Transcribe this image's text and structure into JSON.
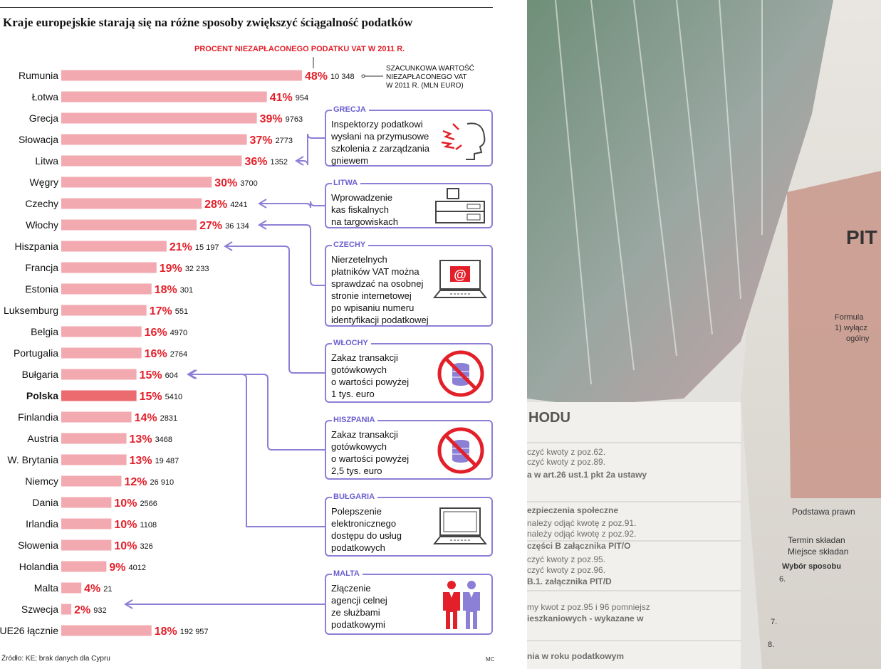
{
  "chart_data": {
    "type": "bar",
    "orientation": "horizontal",
    "title": "Kraje europejskie starają się na różne sposoby zwiększyć ściągalność podatków",
    "subtitle": "PROCENT NIEZAPŁACONEGO PODATKU VAT W 2011 R.",
    "value_annotation": "SZACUNKOWA WARTOŚĆ\nNIEZAPŁACONEGO VAT\nW 2011 R. (MLN EURO)",
    "xlim": [
      0,
      50
    ],
    "categories": [
      "Rumunia",
      "Łotwa",
      "Grecja",
      "Słowacja",
      "Litwa",
      "Węgry",
      "Czechy",
      "Włochy",
      "Hiszpania",
      "Francja",
      "Estonia",
      "Luksemburg",
      "Belgia",
      "Portugalia",
      "Bułgaria",
      "Polska",
      "Finlandia",
      "Austria",
      "W. Brytania",
      "Niemcy",
      "Dania",
      "Irlandia",
      "Słowenia",
      "Holandia",
      "Malta",
      "Szwecja",
      "UE26 łącznie"
    ],
    "series": [
      {
        "name": "Procent niezapłaconego VAT",
        "values": [
          48,
          41,
          39,
          37,
          36,
          30,
          28,
          27,
          21,
          19,
          18,
          17,
          16,
          16,
          15,
          15,
          14,
          13,
          13,
          12,
          10,
          10,
          10,
          9,
          4,
          2,
          18
        ],
        "labels": [
          "48%",
          "41%",
          "39%",
          "37%",
          "36%",
          "30%",
          "28%",
          "27%",
          "21%",
          "19%",
          "18%",
          "17%",
          "16%",
          "16%",
          "15%",
          "15%",
          "14%",
          "13%",
          "13%",
          "12%",
          "10%",
          "10%",
          "10%",
          "9%",
          "4%",
          "2%",
          "18%"
        ]
      },
      {
        "name": "Wartość niezapłaconego VAT (mln euro)",
        "values": [
          10348,
          954,
          9763,
          2773,
          1352,
          3700,
          4241,
          36134,
          15197,
          32233,
          301,
          551,
          4970,
          2764,
          604,
          5410,
          2831,
          3468,
          19487,
          26910,
          2566,
          1108,
          326,
          4012,
          21,
          932,
          192957
        ],
        "labels": [
          "10 348",
          "954",
          "9763",
          "2773",
          "1352",
          "3700",
          "4241",
          "36 134",
          "15 197",
          "32 233",
          "301",
          "551",
          "4970",
          "2764",
          "604",
          "5410",
          "2831",
          "3468",
          "19 487",
          "26 910",
          "2566",
          "1108",
          "326",
          "4012",
          "21",
          "932",
          "192 957"
        ]
      }
    ],
    "highlight": "Polska",
    "bar_color": "#f2aab0",
    "highlight_color": "#ec6b6f",
    "label_color": "#e3202a",
    "callout_color": "#8b7fd6"
  },
  "callouts": [
    {
      "country": "GRECJA",
      "text": "Inspektorzy podatkowi\nwysłani na przymusowe\nszkolenia z zarządzania\ngniewem",
      "icon": "angry-head-icon",
      "target": "Litwa"
    },
    {
      "country": "LITWA",
      "text": "Wprowadzenie\nkas fiskalnych\nna targowiskach",
      "icon": "cash-register-icon",
      "target": "Czechy"
    },
    {
      "country": "CZECHY",
      "text": "Nierzetelnych\npłatników VAT można\nsprawdzać na osobnej\nstronie internetowej\npo wpisaniu numeru\nidentyfikacji podatkowej",
      "icon": "laptop-at-icon",
      "target": "Włochy"
    },
    {
      "country": "WŁOCHY",
      "text": "Zakaz transakcji\ngotówkowych\no wartości powyżej\n1 tys. euro",
      "icon": "no-cash-icon",
      "target": "Hiszpania"
    },
    {
      "country": "HISZPANIA",
      "text": "Zakaz transakcji\ngotówkowych\no wartości powyżej\n2,5 tys. euro",
      "icon": "no-cash-icon",
      "target": "Bułgaria"
    },
    {
      "country": "BUŁGARIA",
      "text": "Polepszenie\nelektronicznego\ndostępu do usług\npodatkowych",
      "icon": "laptop-icon",
      "target": "Polska"
    },
    {
      "country": "MALTA",
      "text": "Złączenie\nagencji celnej\nze służbami\npodatkowymi",
      "icon": "two-officers-icon",
      "target": "Malta"
    }
  ],
  "footer": {
    "source": "Źródło: KE; brak danych dla Cypru",
    "author": "MC"
  },
  "photo": {
    "lines": [
      "HODU",
      "czyć kwoty z poz.62.",
      "czyć kwoty z poz.89.",
      "a w art.26 ust.1 pkt 2a ustawy",
      "ezpieczenia społeczne",
      "należy odjąć kwotę z poz.91.",
      "należy odjąć kwotę z poz.92.",
      "części B załącznika PIT/O",
      "czyć kwoty z poz.95.",
      "czyć kwoty z poz.96.",
      "B.1. załącznika PIT/D",
      "my kwot z poz.95 i 96 pomniejsz",
      "ieszkaniowych - wykazane w",
      "nia w roku podatkowym"
    ],
    "form_title": "PIT",
    "form_tail": [
      "Formula",
      "1) wyłącz",
      "ogólny",
      "Podstawa prawn",
      "Termin składan",
      "Miejsce składan",
      "Wybór sposobu",
      "6.",
      "7.",
      "8."
    ]
  }
}
